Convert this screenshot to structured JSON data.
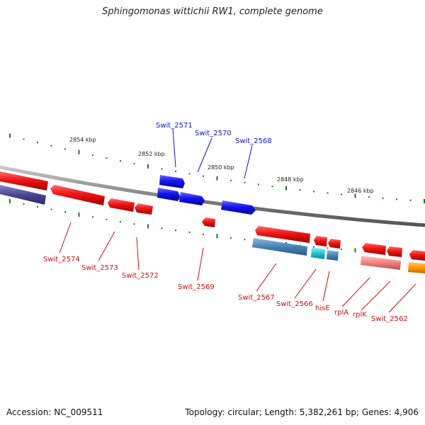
{
  "title": "Sphingomonas wittichii RW1, complete genome",
  "ruler": {
    "labels": [
      "2854 kbp",
      "2852 kbp",
      "2850 kbp",
      "2848 kbp",
      "2846 kbp"
    ]
  },
  "genes_upper": [
    "Swit_2571",
    "Swit_2570",
    "Swit_2568"
  ],
  "genes_lower": [
    "Swit_2574",
    "Swit_2573",
    "Swit_2572",
    "Swit_2569",
    "Swit_2567",
    "Swit_2566",
    "hisE",
    "rplA",
    "rplK",
    "Swit_2562"
  ],
  "colors": {
    "forward_label": "#1010d0",
    "reverse_label": "#cc1010",
    "blue_gene": "#1a1ae0",
    "red_gene": "#e01010",
    "backbone": "#8a8a8a",
    "tick": "#1a7a1a"
  },
  "footer": {
    "accession": "Accession: NC_009511",
    "summary": "Topology: circular; Length: 5,382,261 bp; Genes: 4,906"
  }
}
